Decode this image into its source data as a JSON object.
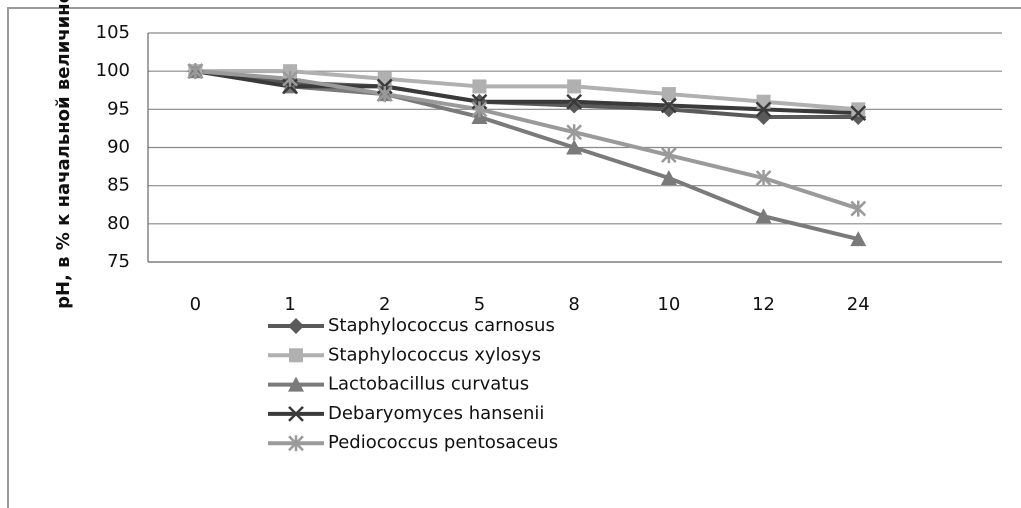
{
  "chart_data": {
    "type": "line",
    "ylabel": "pH, в % к начальной величине",
    "categories": [
      "0",
      "1",
      "2",
      "5",
      "8",
      "10",
      "12",
      "24"
    ],
    "series": [
      {
        "name": "Staphylococcus carnosus",
        "color": "#5a5a5a",
        "marker": "diamond",
        "values": [
          100,
          98.5,
          98,
          96,
          95.5,
          95,
          94,
          94
        ]
      },
      {
        "name": "Staphylococcus xylosys",
        "color": "#b0b0b0",
        "marker": "square",
        "values": [
          100,
          100,
          99,
          98,
          98,
          97,
          96,
          95
        ]
      },
      {
        "name": "Lactobacillus curvatus",
        "color": "#7a7a7a",
        "marker": "triangle",
        "values": [
          100,
          98,
          97,
          94,
          90,
          86,
          81,
          78
        ]
      },
      {
        "name": "Debaryomyces hansenii",
        "color": "#3a3a3a",
        "marker": "x",
        "values": [
          100,
          98,
          98,
          96,
          96,
          95.5,
          95,
          94.5
        ]
      },
      {
        "name": "Pediococcus pentosaceus",
        "color": "#9a9a9a",
        "marker": "star",
        "values": [
          100,
          99,
          97,
          95,
          92,
          89,
          86,
          82
        ]
      }
    ],
    "ylim": [
      75,
      105
    ],
    "yticks": [
      75,
      80,
      85,
      90,
      95,
      100,
      105
    ],
    "grid": true
  }
}
